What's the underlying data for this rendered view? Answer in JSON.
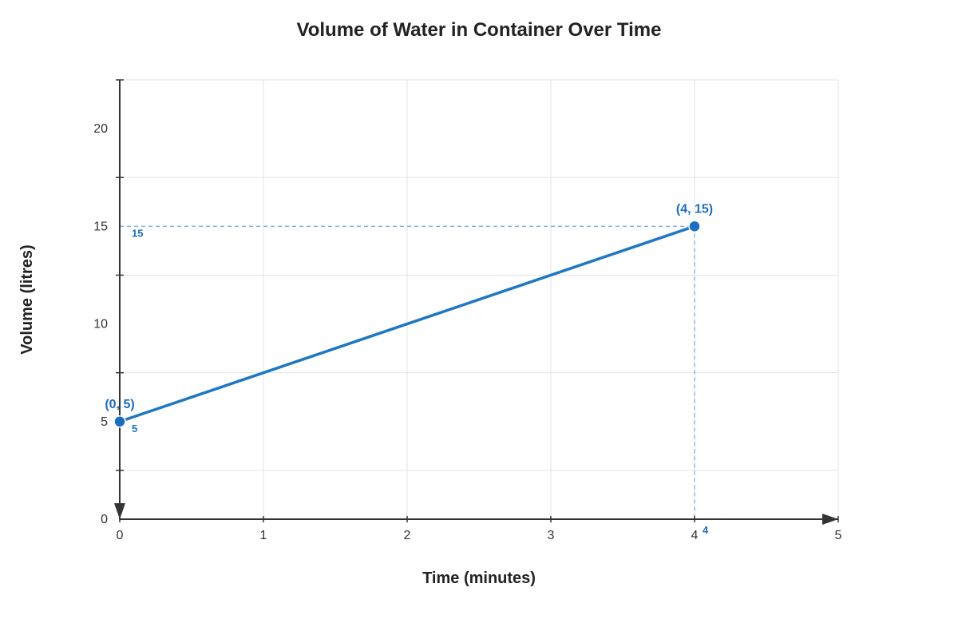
{
  "chart_data": {
    "type": "line",
    "title": "Volume of Water in Container Over Time",
    "xlabel": "Time (minutes)",
    "ylabel": "Volume (litres)",
    "xlim": [
      0,
      5
    ],
    "ylim": [
      0,
      22.5
    ],
    "grid": true,
    "x_ticks": [
      0,
      1,
      2,
      3,
      4,
      5
    ],
    "x_tick_labels": [
      "0",
      "1",
      "2",
      "3",
      "4",
      "5"
    ],
    "y_ticks": [
      0,
      5,
      10,
      15,
      20
    ],
    "y_tick_labels": [
      "0",
      "5",
      "10",
      "15",
      "20"
    ],
    "series": [
      {
        "x": [
          0,
          4
        ],
        "y": [
          5,
          15
        ],
        "point_labels": [
          "(0, 5)",
          "(4, 15)"
        ]
      }
    ],
    "projections": [
      {
        "axis": "y",
        "value": 15,
        "label": "15"
      },
      {
        "axis": "x",
        "value": 4,
        "label": "4"
      },
      {
        "axis": "y",
        "value": 5,
        "label": "5"
      }
    ],
    "colors": {
      "line": "#1f77c4",
      "point": "#1a6fc4",
      "projection": "#7ab0dd",
      "axis": "#333333",
      "grid": "#e3e3e3"
    }
  }
}
